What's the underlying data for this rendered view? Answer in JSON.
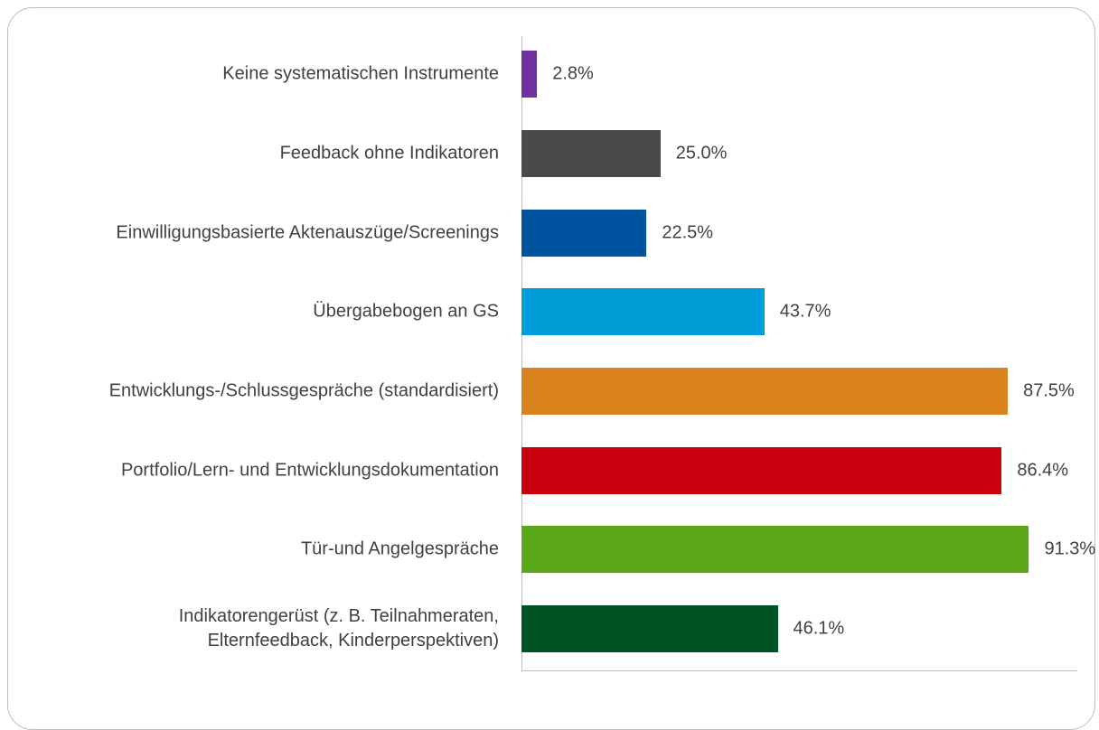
{
  "chart_data": {
    "type": "bar",
    "orientation": "horizontal",
    "categories": [
      "Keine systematischen Instrumente",
      "Feedback ohne Indikatoren",
      "Einwilligungsbasierte Aktenauszüge/Screenings",
      "Übergabebogen an GS",
      "Entwicklungs-/Schlussgespräche (standardisiert)",
      "Portfolio/Lern- und Entwicklungsdokumentation",
      "Tür-und Angelgespräche",
      "Indikatorengerüst (z. B. Teilnahmeraten, Elternfeedback, Kinderperspektiven)"
    ],
    "values": [
      2.8,
      25.0,
      22.5,
      43.7,
      87.5,
      86.4,
      91.3,
      46.1
    ],
    "value_labels": [
      "2.8%",
      "25.0%",
      "22.5%",
      "43.7%",
      "87.5%",
      "86.4%",
      "91.3%",
      "46.1%"
    ],
    "colors": [
      "#7030a0",
      "#4a4a4a",
      "#00539f",
      "#009ed8",
      "#d9821e",
      "#c8000e",
      "#5ba71b",
      "#005322"
    ],
    "xlim": [
      0,
      100
    ]
  }
}
